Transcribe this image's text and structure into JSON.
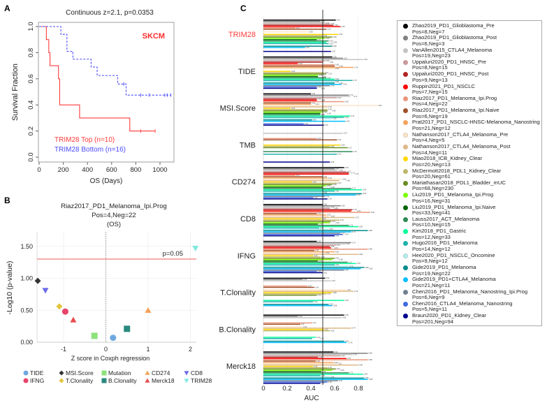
{
  "panels": {
    "a": "A",
    "b": "B",
    "c": "C"
  },
  "chart_data": [
    {
      "type": "line",
      "panel": "A",
      "title": "Continuous z=2.1, p=0.0353",
      "annotation": "SKCM",
      "xlabel": "OS (Days)",
      "ylabel": "Survival Fraction",
      "xlim": [
        0,
        1100
      ],
      "ylim": [
        0,
        1.0
      ],
      "xticks": [
        "0",
        "200",
        "400",
        "600",
        "800",
        "1000"
      ],
      "yticks": [
        "0.0",
        "0.2",
        "0.4",
        "0.6",
        "0.8",
        "1.0"
      ],
      "series": [
        {
          "name": "TRIM28 Top (n=10)",
          "color": "#ff3b3b",
          "style": "solid",
          "steps": [
            [
              0,
              1.0
            ],
            [
              60,
              0.9
            ],
            [
              80,
              0.8
            ],
            [
              90,
              0.7
            ],
            [
              160,
              0.6
            ],
            [
              170,
              0.4
            ],
            [
              335,
              0.3
            ],
            [
              750,
              0.2
            ],
            [
              960,
              0.2
            ]
          ],
          "censored": [
            [
              840,
              0.2
            ],
            [
              960,
              0.2
            ]
          ]
        },
        {
          "name": "TRIM28 Bottom (n=16)",
          "color": "#4a4aff",
          "style": "dashed",
          "steps": [
            [
              0,
              1.0
            ],
            [
              180,
              0.94
            ],
            [
              230,
              0.81
            ],
            [
              280,
              0.75
            ],
            [
              430,
              0.69
            ],
            [
              480,
              0.625
            ],
            [
              650,
              0.56
            ],
            [
              720,
              0.475
            ],
            [
              1090,
              0.475
            ]
          ],
          "censored": [
            [
              700,
              0.56
            ],
            [
              840,
              0.475
            ],
            [
              910,
              0.475
            ],
            [
              1040,
              0.475
            ],
            [
              1060,
              0.475
            ],
            [
              1090,
              0.475
            ]
          ]
        }
      ]
    },
    {
      "type": "scatter",
      "panel": "B",
      "title": [
        "Riaz2017_PD1_Melanoma_Ipi.Prog",
        "Pos=4,Neg=22",
        "(OS)"
      ],
      "xlabel": "Z score in Coxph regression",
      "ylabel": "-Log10 (p-value)",
      "xlim": [
        -1.65,
        2.15
      ],
      "ylim": [
        0,
        1.72
      ],
      "xticks": [
        "-1",
        "0",
        "1",
        "2"
      ],
      "yticks": [
        "0.00",
        "0.50",
        "1.00",
        "1.50"
      ],
      "threshold": {
        "label": "p=0.05",
        "value": 1.301,
        "color": "#f26b6b"
      },
      "points": [
        {
          "name": "TIDE",
          "x": 0.17,
          "y": 0.07,
          "shape": "circle",
          "color": "#6fa8e0"
        },
        {
          "name": "IFNG",
          "x": -0.96,
          "y": 0.48,
          "shape": "circle",
          "color": "#e8436a"
        },
        {
          "name": "MSI.Score",
          "x": -1.61,
          "y": 0.96,
          "shape": "diamond",
          "color": "#333333"
        },
        {
          "name": "T.Clonality",
          "x": -1.1,
          "y": 0.56,
          "shape": "diamond",
          "color": "#e3c43c"
        },
        {
          "name": "Mutation",
          "x": -0.27,
          "y": 0.1,
          "shape": "square",
          "color": "#8de27c"
        },
        {
          "name": "B.Clonality",
          "x": 0.5,
          "y": 0.21,
          "shape": "square",
          "color": "#2a8a7e"
        },
        {
          "name": "CD274",
          "x": 1.0,
          "y": 0.5,
          "shape": "triangle-up",
          "color": "#f5a25a"
        },
        {
          "name": "Merck18",
          "x": -0.77,
          "y": 0.35,
          "shape": "triangle-up",
          "color": "#e84c4c"
        },
        {
          "name": "CD8",
          "x": -1.43,
          "y": 0.81,
          "shape": "triangle-down",
          "color": "#6a6ae8"
        },
        {
          "name": "TRIM28",
          "x": 2.12,
          "y": 1.47,
          "shape": "triangle-down",
          "color": "#80e8e0"
        }
      ]
    },
    {
      "type": "bar",
      "panel": "C",
      "orientation": "horizontal",
      "xlabel": "AUC",
      "xlim": [
        0,
        1.0
      ],
      "xticks": [
        "0",
        "0.2",
        "0.4",
        "0.6",
        "0.8"
      ],
      "reference_line": 0.5,
      "highlight_color": "#ff3b3b",
      "categories": [
        "TRIM28",
        "TIDE",
        "MSI.Score",
        "TMB",
        "CD274",
        "CD8",
        "IFNG",
        "T.Clonality",
        "B.Clonality",
        "Merck18"
      ],
      "series": [
        {
          "name": "Zhao2019_PD1_Glioblastoma_Pre",
          "sub": "Pos=8,Neg=7",
          "color": "#000000"
        },
        {
          "name": "Zhao2019_PD1_Glioblastoma_Post",
          "sub": "Pos=6,Neg=3",
          "color": "#808080"
        },
        {
          "name": "VanAllen2015_CTLA4_Melanoma",
          "sub": "Pos=19,Neg=23",
          "color": "#c4c4c4"
        },
        {
          "name": "Uppaluri2020_PD1_HNSC_Pre",
          "sub": "Pos=8,Neg=15",
          "color": "#c99a9a"
        },
        {
          "name": "Uppaluri2020_PD1_HNSC_Post",
          "sub": "Pos=9,Neg=13",
          "color": "#b22222"
        },
        {
          "name": "Ruppin2021_PD1_NSCLC",
          "sub": "Pos=7,Neg=15",
          "color": "#ff0000"
        },
        {
          "name": "Riaz2017_PD1_Melanoma_Ipi.Prog",
          "sub": "Pos=4,Neg=22",
          "color": "#e9967a"
        },
        {
          "name": "Riaz2017_PD1_Melanoma_Ipi.Naive",
          "sub": "Pos=6,Neg=19",
          "color": "#a0522d"
        },
        {
          "name": "Prat2017_PD1_NSCLC-HNSC-Melanoma_Nanostring",
          "sub": "Pos=21,Neg=12",
          "color": "#f4a460"
        },
        {
          "name": "Nathanson2017_CTLA4_Melanoma_Pre",
          "sub": "Pos=4,Neg=5",
          "color": "#ffe4c4"
        },
        {
          "name": "Nathanson2017_CTLA4_Melanoma_Post",
          "sub": "Pos=4,Neg=11",
          "color": "#deb887"
        },
        {
          "name": "Miao2018_ICB_Kidney_Clear",
          "sub": "Pos=20,Neg=13",
          "color": "#ffd700"
        },
        {
          "name": "McDermott2018_PDL1_Kidney_Clear",
          "sub": "Pos=20,Neg=61",
          "color": "#bdb76b"
        },
        {
          "name": "Mariathasan2018_PDL1_Bladder_mUC",
          "sub": "Pos=68,Neg=230",
          "color": "#6b8e23"
        },
        {
          "name": "Liu2019_PD1_Melanoma_Ipi.Prog",
          "sub": "Pos=16,Neg=31",
          "color": "#7cfc00"
        },
        {
          "name": "Liu2019_PD1_Melanoma_Ipi.Naive",
          "sub": "Pos=33,Neg=41",
          "color": "#006400"
        },
        {
          "name": "Lauss2017_ACT_Melanoma",
          "sub": "Pos=10,Neg=15",
          "color": "#2e8b57"
        },
        {
          "name": "Kim2018_PD1_Gastric",
          "sub": "Pos=12,Neg=33",
          "color": "#00fa9a"
        },
        {
          "name": "Hugo2016_PD1_Melanoma",
          "sub": "Pos=14,Neg=12",
          "color": "#20b2aa"
        },
        {
          "name": "Hee2020_PD1_NSCLC_Oncomine",
          "sub": "Pos=9,Neg=12",
          "color": "#afeeee"
        },
        {
          "name": "Gide2019_PD1_Melanoma",
          "sub": "Pos=19,Neg=22",
          "color": "#008b8b"
        },
        {
          "name": "Gide2019_PD1+CTLA4_Melanoma",
          "sub": "Pos=21,Neg=11",
          "color": "#00bfff"
        },
        {
          "name": "Chen2016_PD1_Melanoma_Nanostring_Ipi.Prog",
          "sub": "Pos=6,Neg=9",
          "color": "#708090"
        },
        {
          "name": "Chen2016_CTLA4_Melanoma_Nanostring",
          "sub": "Pos=5,Neg=11",
          "color": "#4169e1"
        },
        {
          "name": "Braun2020_PD1_Kidney_Clear",
          "sub": "Pos=201,Neg=94",
          "color": "#00008b"
        }
      ],
      "values": [
        [
          0.61,
          0.48,
          0.52,
          0.56,
          0.59,
          0.65,
          0.27,
          0.53,
          null,
          0.38,
          null,
          0.63,
          0.5,
          0.58,
          0.52,
          0.45,
          0.55,
          0.53,
          0.55,
          null,
          0.58,
          0.35,
          null,
          null,
          0.57
        ],
        [
          0.58,
          0.67,
          0.84,
          0.52,
          0.5,
          0.29,
          0.6,
          0.6,
          0.76,
          0.6,
          null,
          0.23,
          0.51,
          0.53,
          0.46,
          0.46,
          0.53,
          0.6,
          0.75,
          0.6,
          0.6,
          0.66,
          0.56,
          0.45,
          0.45
        ],
        [
          0.4,
          0.72,
          0.73,
          0.62,
          0.45,
          0.45,
          0.68,
          0.4,
          0.4,
          0.96,
          0.54,
          0.23,
          0.54,
          0.54,
          0.5,
          0.48,
          0.48,
          0.73,
          0.68,
          0.58,
          0.41,
          0.69,
          null,
          0.34,
          0.51
        ],
        [
          null,
          null,
          0.67,
          null,
          null,
          null,
          0.45,
          0.62,
          null,
          null,
          null,
          0.65,
          0.56,
          0.71,
          null,
          null,
          0.75,
          null,
          0.62,
          null,
          null,
          null,
          null,
          null,
          0.56
        ],
        [
          0.68,
          0.6,
          0.62,
          0.7,
          0.72,
          0.72,
          0.27,
          0.5,
          0.54,
          0.66,
          0.64,
          0.41,
          0.62,
          0.58,
          0.53,
          0.5,
          0.74,
          0.83,
          0.6,
          0.5,
          0.83,
          0.78,
          0.52,
          0.42,
          0.54
        ],
        [
          0.5,
          0.65,
          0.56,
          0.56,
          0.75,
          0.74,
          0.9,
          0.45,
          0.53,
          0.55,
          0.77,
          0.49,
          0.64,
          0.57,
          0.56,
          0.46,
          0.72,
          0.8,
          0.47,
          0.55,
          0.88,
          0.74,
          0.65,
          0.67,
          0.6
        ],
        [
          0.45,
          0.74,
          0.69,
          0.61,
          0.56,
          0.57,
          0.88,
          0.43,
          0.6,
          0.52,
          0.8,
          0.42,
          0.48,
          0.6,
          0.58,
          0.46,
          0.71,
          0.78,
          0.6,
          0.72,
          0.85,
          0.82,
          0.68,
          0.45,
          0.5
        ],
        [
          0.52,
          0.33,
          0.57,
          null,
          null,
          null,
          0.37,
          0.43,
          null,
          0.7,
          0.76,
          0.58,
          0.53,
          0.45,
          null,
          null,
          null,
          0.68,
          0.42,
          null,
          0.55,
          0.58,
          null,
          null,
          null
        ],
        [
          0.68,
          0.29,
          0.66,
          null,
          null,
          null,
          0.41,
          0.31,
          null,
          0.33,
          0.74,
          0.51,
          0.56,
          null,
          null,
          null,
          null,
          0.44,
          0.41,
          null,
          0.68,
          0.7,
          null,
          null,
          null
        ],
        [
          0.59,
          0.88,
          0.75,
          0.65,
          0.46,
          0.7,
          0.88,
          0.44,
          0.59,
          0.62,
          0.8,
          0.42,
          0.54,
          0.61,
          0.58,
          0.49,
          0.72,
          0.84,
          0.48,
          0.56,
          0.85,
          0.88,
          0.63,
          0.54,
          0.48
        ]
      ]
    }
  ]
}
